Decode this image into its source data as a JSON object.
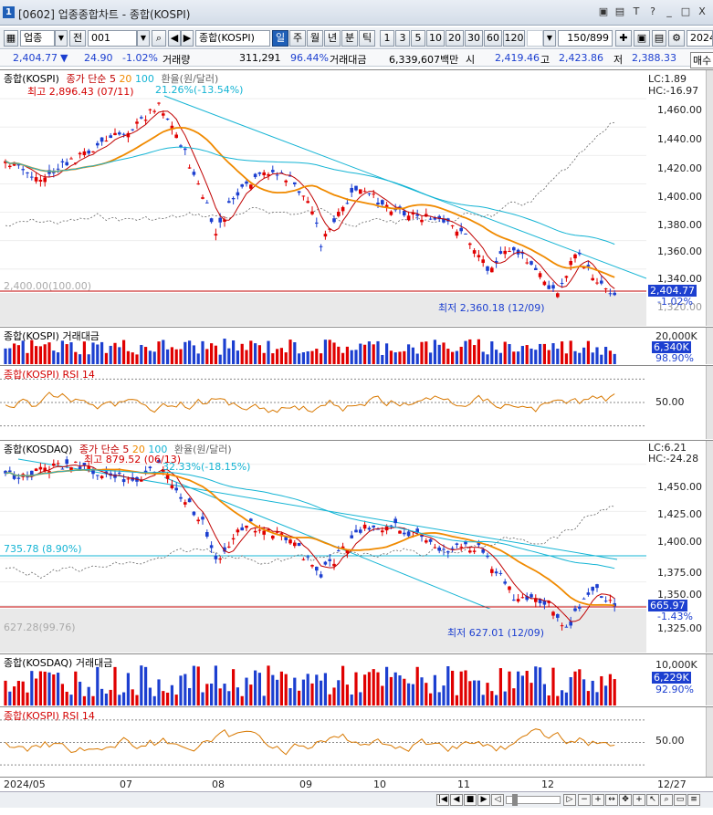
{
  "window": {
    "icon_label": "1",
    "title": "[0602] 업종종합차트 - 종합(KOSPI)",
    "controls": [
      "▣",
      "▤",
      "T",
      "?",
      "_",
      "□",
      "X"
    ]
  },
  "toolbar": {
    "sector_type": "업종",
    "all_label": "전",
    "code": "001",
    "index_name": "종합(KOSPI)",
    "period_tabs": [
      "일",
      "주",
      "월",
      "년",
      "분",
      "틱"
    ],
    "active_period": "일",
    "intervals": [
      "1",
      "3",
      "5",
      "10",
      "20",
      "30",
      "60",
      "120"
    ],
    "count": "150/899",
    "year": "2024"
  },
  "quote": {
    "price": "2,404.77",
    "down_arrow": "▼",
    "change": "24.90",
    "change_pct": "-1.02%",
    "volume_label": "거래량",
    "volume": "311,291",
    "volume_ratio": "96.44%",
    "value_label": "거래대금",
    "value": "6,339,607백만",
    "open_label": "시",
    "open": "2,419.46",
    "high_label": "고",
    "high": "2,423.86",
    "low_label": "저",
    "low": "2,388.33",
    "trade_label": "매수"
  },
  "kospi_price": {
    "title": "종합(KOSPI)",
    "ma_label": "종가 단순",
    "ma_periods": [
      "5",
      "20",
      "100"
    ],
    "fx_label": "환율(원/달러)",
    "high_anno": "최고 2,896.43 (07/11)",
    "high_pct_anno": "21.26%(-13.54%)",
    "low_anno": "최저 2,360.18 (12/09)",
    "base_anno": "2,400.00(100.00)",
    "lc": "LC:1.89",
    "hc": "HC:-16.97",
    "y_ticks": [
      "1,460.00",
      "1,440.00",
      "1,420.00",
      "1,400.00",
      "1,380.00",
      "1,360.00",
      "1,340.00",
      "1,320.00"
    ],
    "current_tag": "2,404.77",
    "current_pct": "-1.02%",
    "colors": {
      "ma5": "#c00000",
      "ma20": "#f08a00",
      "ma100": "#14b4d4",
      "up": "#e00000",
      "down": "#1c3fd0",
      "fx": "#666666"
    }
  },
  "kospi_volume": {
    "title": "종합(KOSPI) 거래대금",
    "y_tick": "20,000K",
    "current_tag": "6,340K",
    "pct": "98.90%"
  },
  "kospi_rsi": {
    "title": "종합(KOSPI) RSI 14",
    "y_tick": "50.00"
  },
  "kosdaq_price": {
    "title": "종합(KOSDAQ)",
    "ma_label": "종가 단순",
    "ma_periods": [
      "5",
      "20",
      "100"
    ],
    "fx_label": "환율(원/달러)",
    "high_anno": "최고 879.52 (06/13)",
    "high_pct_anno": "32.33%(-18.15%)",
    "low_anno": "최저 627.01 (12/09)",
    "hline_anno": "735.78 (8.90%)",
    "base_anno": "627.28(99.76)",
    "lc": "LC:6.21",
    "hc": "HC:-24.28",
    "y_ticks": [
      "1,450.00",
      "1,425.00",
      "1,400.00",
      "1,375.00",
      "1,350.00",
      "1,325.00"
    ],
    "current_tag": "665.97",
    "current_pct": "-1.43%"
  },
  "kosdaq_volume": {
    "title": "종합(KOSDAQ) 거래대금",
    "y_tick": "10,000K",
    "current_tag": "6,229K",
    "pct": "92.90%"
  },
  "kosdaq_rsi": {
    "title": "종합(KOSPI) RSI 14",
    "y_tick": "50.00"
  },
  "date_axis": {
    "labels": [
      "2024/05",
      "07",
      "08",
      "09",
      "10",
      "11",
      "12"
    ],
    "last": "12/27"
  }
}
